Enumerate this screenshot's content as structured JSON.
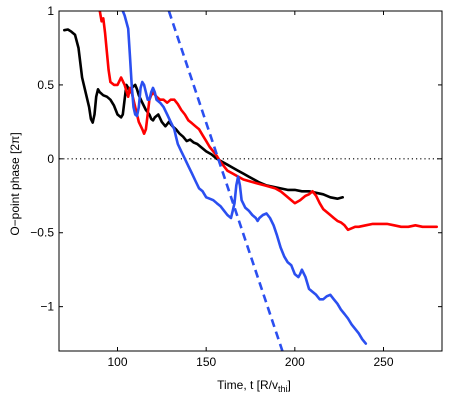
{
  "chart_data": {
    "type": "line",
    "xlabel_main": "Time, t [R/v",
    "xlabel_sub": "thi",
    "xlabel_end": "]",
    "ylabel": "O−point phase [2π]",
    "xlim": [
      67,
      283
    ],
    "ylim": [
      -1.3,
      1.0
    ],
    "grid": false,
    "x_ticks": [
      100,
      150,
      200,
      250
    ],
    "x_tick_labels": [
      "100",
      "150",
      "200",
      "250"
    ],
    "y_ticks": [
      1,
      0.5,
      0,
      -0.5,
      -1
    ],
    "y_tick_labels": [
      "1",
      "0.5",
      "0",
      "−0.5",
      "−1"
    ],
    "reference_line": {
      "y": 0,
      "style": "dotted",
      "color": "#000000"
    },
    "series": [
      {
        "color": "#000000",
        "style": "solid",
        "points": [
          [
            70,
            0.87
          ],
          [
            72,
            0.875
          ],
          [
            74,
            0.86
          ],
          [
            76,
            0.84
          ],
          [
            78,
            0.75
          ],
          [
            80,
            0.55
          ],
          [
            82,
            0.45
          ],
          [
            84,
            0.35
          ],
          [
            85,
            0.27
          ],
          [
            86,
            0.245
          ],
          [
            87,
            0.3
          ],
          [
            88,
            0.42
          ],
          [
            89,
            0.47
          ],
          [
            90,
            0.45
          ],
          [
            91,
            0.44
          ],
          [
            92,
            0.43
          ],
          [
            94,
            0.42
          ],
          [
            96,
            0.4
          ],
          [
            98,
            0.36
          ],
          [
            100,
            0.3
          ],
          [
            102,
            0.28
          ],
          [
            103,
            0.3
          ],
          [
            104,
            0.4
          ],
          [
            105,
            0.5
          ],
          [
            106,
            0.48
          ],
          [
            107,
            0.45
          ],
          [
            108,
            0.48
          ],
          [
            110,
            0.5
          ],
          [
            111,
            0.47
          ],
          [
            112,
            0.43
          ],
          [
            114,
            0.38
          ],
          [
            116,
            0.33
          ],
          [
            118,
            0.3
          ],
          [
            119,
            0.27
          ],
          [
            120,
            0.26
          ],
          [
            121,
            0.28
          ],
          [
            123,
            0.3
          ],
          [
            125,
            0.25
          ],
          [
            127,
            0.22
          ],
          [
            129,
            0.25
          ],
          [
            131,
            0.22
          ],
          [
            133,
            0.2
          ],
          [
            135,
            0.17
          ],
          [
            137,
            0.15
          ],
          [
            139,
            0.12
          ],
          [
            141,
            0.13
          ],
          [
            143,
            0.11
          ],
          [
            145,
            0.1
          ],
          [
            147,
            0.08
          ],
          [
            150,
            0.05
          ],
          [
            153,
            0.03
          ],
          [
            156,
            0.0
          ],
          [
            159,
            -0.02
          ],
          [
            162,
            -0.04
          ],
          [
            165,
            -0.06
          ],
          [
            168,
            -0.08
          ],
          [
            171,
            -0.1
          ],
          [
            174,
            -0.12
          ],
          [
            177,
            -0.14
          ],
          [
            180,
            -0.16
          ],
          [
            184,
            -0.18
          ],
          [
            188,
            -0.19
          ],
          [
            192,
            -0.2
          ],
          [
            196,
            -0.21
          ],
          [
            200,
            -0.21
          ],
          [
            204,
            -0.22
          ],
          [
            208,
            -0.22
          ],
          [
            212,
            -0.23
          ],
          [
            216,
            -0.24
          ],
          [
            220,
            -0.26
          ],
          [
            224,
            -0.27
          ],
          [
            227,
            -0.26
          ]
        ]
      },
      {
        "color": "#ff0000",
        "style": "solid",
        "points": [
          [
            90,
            1.0
          ],
          [
            91,
            0.93
          ],
          [
            92,
            0.95
          ],
          [
            93,
            0.85
          ],
          [
            94,
            0.72
          ],
          [
            95,
            0.6
          ],
          [
            96,
            0.52
          ],
          [
            98,
            0.5
          ],
          [
            100,
            0.5
          ],
          [
            102,
            0.55
          ],
          [
            104,
            0.5
          ],
          [
            106,
            0.42
          ],
          [
            107,
            0.48
          ],
          [
            108,
            0.45
          ],
          [
            110,
            0.35
          ],
          [
            112,
            0.25
          ],
          [
            114,
            0.2
          ],
          [
            115,
            0.17
          ],
          [
            116,
            0.2
          ],
          [
            118,
            0.4
          ],
          [
            119,
            0.43
          ],
          [
            120,
            0.45
          ],
          [
            122,
            0.42
          ],
          [
            124,
            0.4
          ],
          [
            126,
            0.4
          ],
          [
            128,
            0.38
          ],
          [
            130,
            0.4
          ],
          [
            132,
            0.4
          ],
          [
            134,
            0.37
          ],
          [
            136,
            0.33
          ],
          [
            138,
            0.3
          ],
          [
            140,
            0.26
          ],
          [
            142,
            0.24
          ],
          [
            144,
            0.22
          ],
          [
            146,
            0.2
          ],
          [
            148,
            0.16
          ],
          [
            150,
            0.12
          ],
          [
            152,
            0.08
          ],
          [
            154,
            0.05
          ],
          [
            156,
            0.02
          ],
          [
            158,
            -0.02
          ],
          [
            160,
            -0.05
          ],
          [
            162,
            -0.08
          ],
          [
            165,
            -0.1
          ],
          [
            168,
            -0.12
          ],
          [
            171,
            -0.14
          ],
          [
            174,
            -0.15
          ],
          [
            177,
            -0.16
          ],
          [
            180,
            -0.17
          ],
          [
            183,
            -0.18
          ],
          [
            186,
            -0.19
          ],
          [
            189,
            -0.2
          ],
          [
            192,
            -0.22
          ],
          [
            195,
            -0.25
          ],
          [
            198,
            -0.28
          ],
          [
            200,
            -0.3
          ],
          [
            203,
            -0.28
          ],
          [
            206,
            -0.25
          ],
          [
            208,
            -0.24
          ],
          [
            210,
            -0.22
          ],
          [
            212,
            -0.25
          ],
          [
            214,
            -0.3
          ],
          [
            216,
            -0.34
          ],
          [
            218,
            -0.36
          ],
          [
            220,
            -0.38
          ],
          [
            222,
            -0.4
          ],
          [
            224,
            -0.42
          ],
          [
            226,
            -0.43
          ],
          [
            228,
            -0.45
          ],
          [
            230,
            -0.48
          ],
          [
            232,
            -0.47
          ],
          [
            234,
            -0.46
          ],
          [
            236,
            -0.46
          ],
          [
            240,
            -0.45
          ],
          [
            244,
            -0.44
          ],
          [
            248,
            -0.44
          ],
          [
            252,
            -0.44
          ],
          [
            256,
            -0.45
          ],
          [
            260,
            -0.46
          ],
          [
            264,
            -0.46
          ],
          [
            268,
            -0.45
          ],
          [
            272,
            -0.46
          ],
          [
            276,
            -0.46
          ],
          [
            280,
            -0.46
          ]
        ]
      },
      {
        "color": "#2b4ff0",
        "style": "solid",
        "points": [
          [
            103,
            1.0
          ],
          [
            104,
            0.97
          ],
          [
            106,
            0.88
          ],
          [
            107,
            0.7
          ],
          [
            108,
            0.5
          ],
          [
            109,
            0.35
          ],
          [
            110,
            0.3
          ],
          [
            111,
            0.29
          ],
          [
            112,
            0.35
          ],
          [
            113,
            0.48
          ],
          [
            114,
            0.52
          ],
          [
            115,
            0.5
          ],
          [
            116,
            0.45
          ],
          [
            117,
            0.4
          ],
          [
            118,
            0.4
          ],
          [
            119,
            0.45
          ],
          [
            120,
            0.48
          ],
          [
            121,
            0.45
          ],
          [
            122,
            0.4
          ],
          [
            124,
            0.38
          ],
          [
            126,
            0.35
          ],
          [
            128,
            0.3
          ],
          [
            130,
            0.25
          ],
          [
            132,
            0.2
          ],
          [
            133,
            0.15
          ],
          [
            134,
            0.1
          ],
          [
            136,
            0.05
          ],
          [
            138,
            0.0
          ],
          [
            140,
            -0.05
          ],
          [
            142,
            -0.1
          ],
          [
            144,
            -0.15
          ],
          [
            146,
            -0.2
          ],
          [
            148,
            -0.22
          ],
          [
            150,
            -0.26
          ],
          [
            152,
            -0.27
          ],
          [
            154,
            -0.28
          ],
          [
            156,
            -0.3
          ],
          [
            158,
            -0.32
          ],
          [
            160,
            -0.35
          ],
          [
            162,
            -0.38
          ],
          [
            164,
            -0.4
          ],
          [
            165,
            -0.35
          ],
          [
            166,
            -0.3
          ],
          [
            167,
            -0.18
          ],
          [
            168,
            -0.12
          ],
          [
            169,
            -0.18
          ],
          [
            170,
            -0.28
          ],
          [
            172,
            -0.33
          ],
          [
            174,
            -0.35
          ],
          [
            176,
            -0.38
          ],
          [
            178,
            -0.4
          ],
          [
            179,
            -0.42
          ],
          [
            180,
            -0.4
          ],
          [
            182,
            -0.38
          ],
          [
            184,
            -0.37
          ],
          [
            186,
            -0.4
          ],
          [
            188,
            -0.45
          ],
          [
            190,
            -0.52
          ],
          [
            192,
            -0.6
          ],
          [
            194,
            -0.66
          ],
          [
            196,
            -0.7
          ],
          [
            198,
            -0.72
          ],
          [
            200,
            -0.78
          ],
          [
            202,
            -0.8
          ],
          [
            203,
            -0.78
          ],
          [
            204,
            -0.75
          ],
          [
            206,
            -0.8
          ],
          [
            208,
            -0.88
          ],
          [
            210,
            -0.9
          ],
          [
            212,
            -0.92
          ],
          [
            214,
            -0.95
          ],
          [
            216,
            -0.95
          ],
          [
            218,
            -0.93
          ],
          [
            220,
            -0.92
          ],
          [
            222,
            -0.95
          ],
          [
            224,
            -0.98
          ],
          [
            226,
            -1.02
          ],
          [
            228,
            -1.05
          ],
          [
            230,
            -1.08
          ],
          [
            232,
            -1.12
          ],
          [
            234,
            -1.15
          ],
          [
            236,
            -1.18
          ],
          [
            238,
            -1.22
          ],
          [
            240,
            -1.25
          ]
        ]
      },
      {
        "color": "#2b4ff0",
        "style": "dashed",
        "points": [
          [
            129,
            1.0
          ],
          [
            193,
            -1.3
          ]
        ]
      }
    ]
  }
}
